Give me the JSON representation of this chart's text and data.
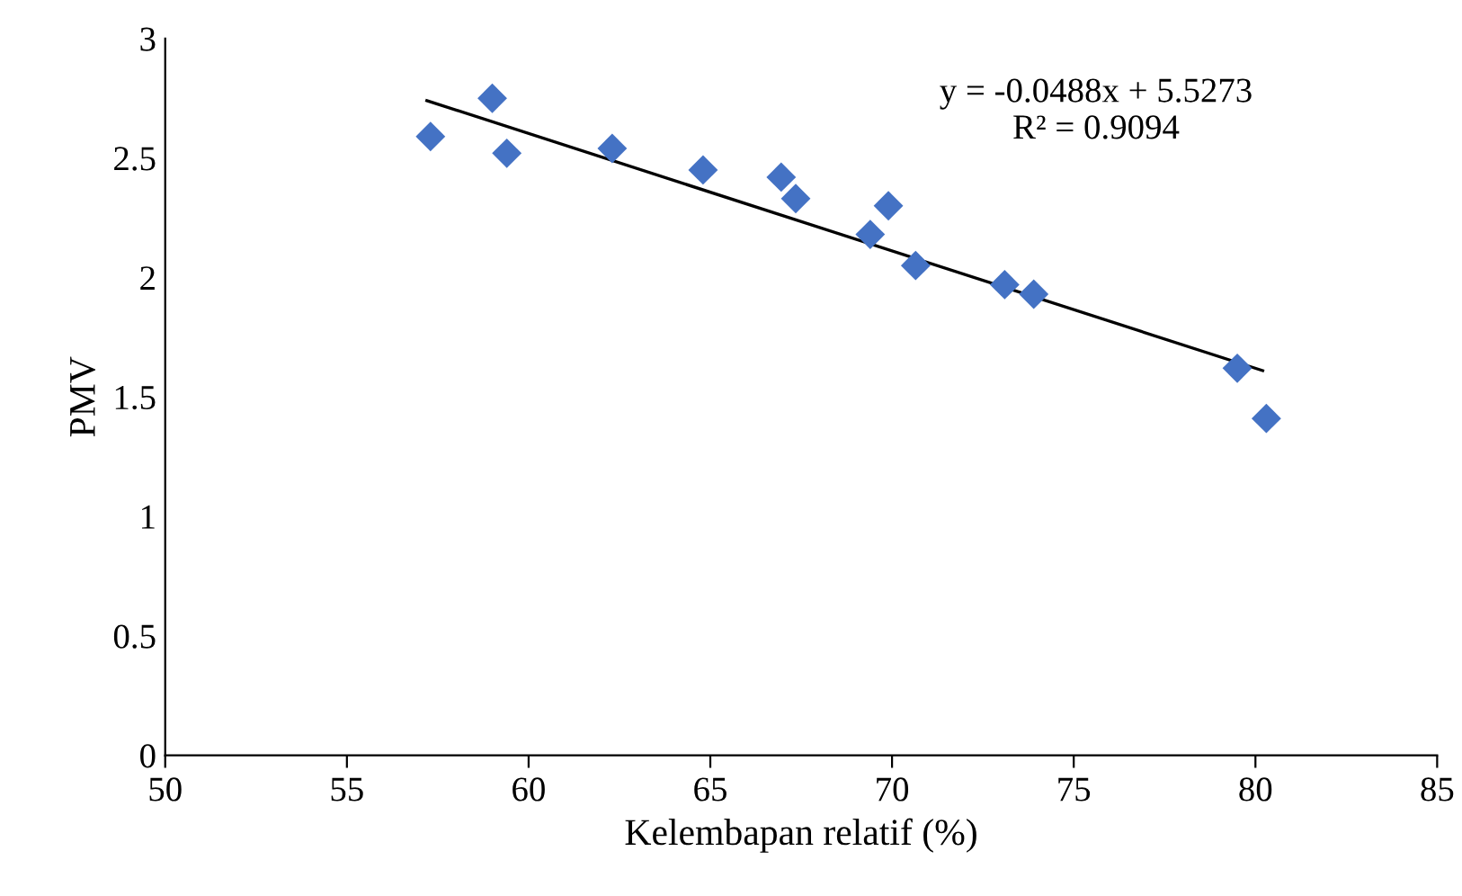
{
  "chart_data": {
    "type": "scatter",
    "xlabel": "Kelembapan relatif (%)",
    "ylabel": "PMV",
    "xlim": [
      50,
      85
    ],
    "xticks": [
      50,
      55,
      60,
      65,
      70,
      75,
      80,
      85
    ],
    "ylim": [
      0,
      3
    ],
    "yticks": [
      0,
      0.5,
      1,
      1.5,
      2,
      2.5,
      3
    ],
    "grid": false,
    "legend": false,
    "series": [
      {
        "marker": "diamond",
        "color": "#4472c4",
        "x": [
          57.3,
          59.0,
          59.4,
          62.3,
          64.8,
          66.95,
          67.35,
          69.4,
          69.9,
          70.65,
          73.1,
          73.9,
          79.5,
          80.3
        ],
        "values": [
          2.59,
          2.75,
          2.52,
          2.54,
          2.45,
          2.42,
          2.33,
          2.18,
          2.3,
          2.05,
          1.97,
          1.93,
          1.62,
          1.41
        ]
      },
      {
        "type": "line",
        "color": "#000000",
        "x": [
          57.2,
          80.2
        ],
        "values": [
          2.74,
          1.61
        ]
      }
    ],
    "annotations": [
      "y = -0.0488x + 5.5273\nR² = 0.9094"
    ]
  }
}
